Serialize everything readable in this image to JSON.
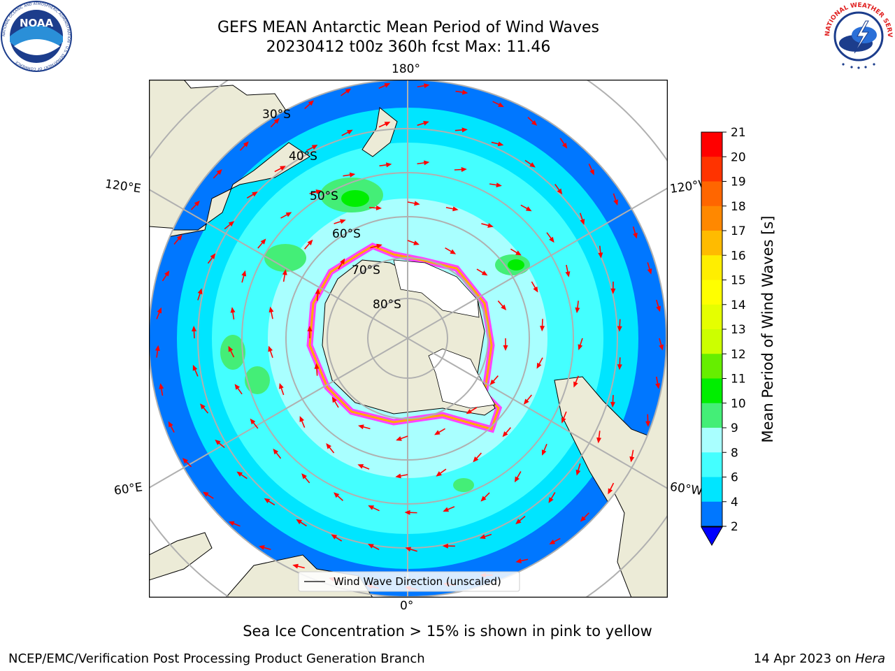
{
  "header": {
    "title_line1": "GEFS MEAN Antarctic Mean Period of Wind Waves",
    "title_line2": "20230412 t00z 360h fcst   Max: 11.46"
  },
  "logos": {
    "left": {
      "name": "NOAA",
      "text": "NOAA",
      "ring_text": "NATIONAL OCEANIC AND ATMOSPHERIC ADMINISTRATION · U.S. DEPARTMENT OF COMMERCE"
    },
    "right": {
      "name": "NATIONAL WEATHER SERVICE",
      "ring_text": "NATIONAL WEATHER SERVICE"
    }
  },
  "map": {
    "projection": "south polar stereographic",
    "longitude_labels": {
      "top": "180°",
      "bottom": "0°",
      "left_upper": "120°E",
      "left_lower": "60°E",
      "right_upper": "120°W",
      "right_lower": "60°W"
    },
    "latitude_labels": [
      "30°S",
      "40°S",
      "50°S",
      "60°S",
      "70°S",
      "80°S"
    ],
    "legend_label": "Wind Wave Direction (unscaled)",
    "sea_ice_colors": [
      "#ff44ff",
      "#ffaa00",
      "#ffff00"
    ],
    "colors": {
      "land": "#ecebd7",
      "ice_free_antarctic": "#ffffff",
      "arrow": "#ff0000",
      "grid": "#b0b0b0"
    }
  },
  "colorbar": {
    "title": "Mean Period of Wind Waves [s]",
    "ticks": [
      "2",
      "4",
      "6",
      "8",
      "9",
      "10",
      "11",
      "12",
      "13",
      "14",
      "15",
      "16",
      "17",
      "18",
      "19",
      "20",
      "21"
    ],
    "bins": [
      {
        "from": 0,
        "to": 2,
        "color": "#0000ff"
      },
      {
        "from": 2,
        "to": 4,
        "color": "#0077ff"
      },
      {
        "from": 4,
        "to": 6,
        "color": "#00e5ff"
      },
      {
        "from": 6,
        "to": 8,
        "color": "#44ffff"
      },
      {
        "from": 8,
        "to": 9,
        "color": "#a9ffff"
      },
      {
        "from": 9,
        "to": 10,
        "color": "#44ee77"
      },
      {
        "from": 10,
        "to": 11,
        "color": "#00ee00"
      },
      {
        "from": 11,
        "to": 12,
        "color": "#66ee00"
      },
      {
        "from": 12,
        "to": 13,
        "color": "#ccff00"
      },
      {
        "from": 13,
        "to": 14,
        "color": "#e5ff00"
      },
      {
        "from": 14,
        "to": 15,
        "color": "#ffff00"
      },
      {
        "from": 15,
        "to": 16,
        "color": "#ffee00"
      },
      {
        "from": 16,
        "to": 17,
        "color": "#ffbb00"
      },
      {
        "from": 17,
        "to": 18,
        "color": "#ff8800"
      },
      {
        "from": 18,
        "to": 19,
        "color": "#ff6600"
      },
      {
        "from": 19,
        "to": 20,
        "color": "#ff3300"
      },
      {
        "from": 20,
        "to": 21,
        "color": "#ff0000"
      }
    ]
  },
  "footer": {
    "note": "Sea Ice Concentration > 15% is shown in pink to yellow",
    "credit_left": "NCEP/EMC/Verification Post Processing Product Generation Branch",
    "credit_right_prefix": "14 Apr 2023 on ",
    "credit_right_host": "Hera"
  }
}
